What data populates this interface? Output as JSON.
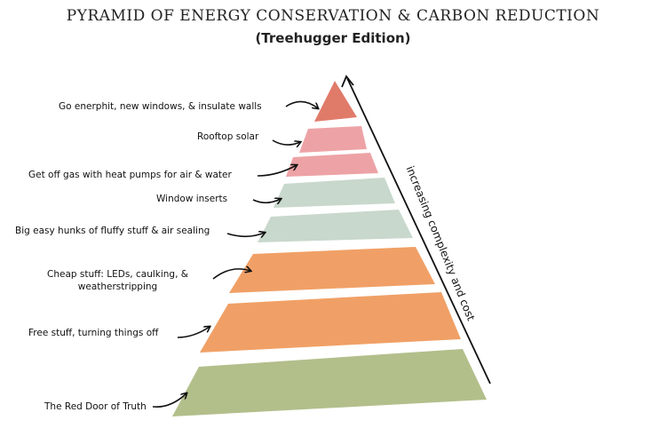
{
  "title": "PYRAMID OF ENERGY CONSERVATION & CARBON REDUCTION",
  "subtitle": "(Treehugger Edition)",
  "axis_label": "increasing complexity and cost",
  "colors": {
    "top": "#e07b6a",
    "pink": "#eda3a6",
    "sage": "#c8d8cc",
    "orange": "#f0a066",
    "olive": "#b2bf8b"
  },
  "tiers": [
    {
      "label": "Go enerphit, new windows, & insulate walls",
      "color": "#e07b6a"
    },
    {
      "label": "Rooftop solar",
      "color": "#eda3a6"
    },
    {
      "label": "Get off gas with heat pumps for air & water",
      "color": "#eda3a6"
    },
    {
      "label": "Window inserts",
      "color": "#c8d8cc"
    },
    {
      "label": "Big easy hunks of fluffy stuff & air sealing",
      "color": "#c8d8cc"
    },
    {
      "label": "Cheap stuff: LEDs, caulking, & weatherstripping",
      "color": "#f0a066"
    },
    {
      "label": "Free stuff, turning things off",
      "color": "#f0a066"
    },
    {
      "label": "The Red Door of Truth",
      "color": "#b2bf8b"
    }
  ]
}
